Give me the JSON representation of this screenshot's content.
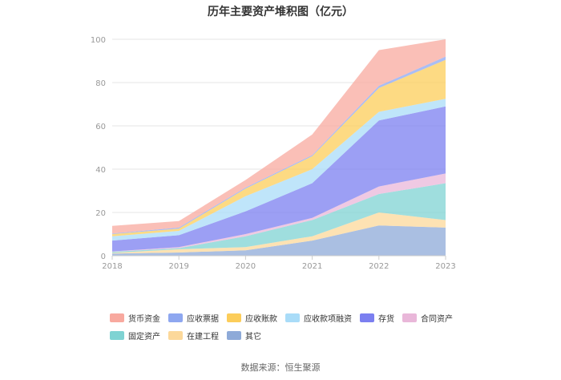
{
  "chart_data": {
    "type": "area",
    "stacked": true,
    "title": "历年主要资产堆积图（亿元）",
    "categories": [
      "2018",
      "2019",
      "2020",
      "2021",
      "2022",
      "2023"
    ],
    "y_ticks": [
      "0",
      "20",
      "40",
      "60",
      "80",
      "100"
    ],
    "ylim": [
      0,
      100
    ],
    "grid": true,
    "legend_position": "bottom",
    "series": [
      {
        "name": "其它",
        "color": "#8eaad8",
        "values": [
          1.0,
          1.5,
          2.5,
          7.0,
          14.0,
          13.0
        ]
      },
      {
        "name": "在建工程",
        "color": "#fcd89a",
        "values": [
          0.3,
          1.5,
          1.5,
          2.0,
          6.0,
          3.5
        ]
      },
      {
        "name": "固定资产",
        "color": "#7fd3d3",
        "values": [
          0.5,
          0.5,
          5.0,
          7.5,
          8.5,
          17.0
        ]
      },
      {
        "name": "合同资产",
        "color": "#e9b7d9",
        "values": [
          0.2,
          0.5,
          1.0,
          1.0,
          3.5,
          4.5
        ]
      },
      {
        "name": "存货",
        "color": "#7b7ff0",
        "values": [
          5.0,
          5.5,
          10.5,
          16.0,
          30.5,
          31.0
        ]
      },
      {
        "name": "应收款项融资",
        "color": "#a9dcf8",
        "values": [
          2.0,
          2.0,
          7.0,
          6.5,
          4.0,
          3.5
        ]
      },
      {
        "name": "应收账款",
        "color": "#fccd5a",
        "values": [
          1.0,
          1.0,
          3.5,
          6.0,
          11.0,
          18.0
        ]
      },
      {
        "name": "应收票据",
        "color": "#8ea7f0",
        "values": [
          0.3,
          0.5,
          0.5,
          0.5,
          1.0,
          1.5
        ]
      },
      {
        "name": "货币资金",
        "color": "#f8a99f",
        "values": [
          3.5,
          3.0,
          3.5,
          9.5,
          16.5,
          8.0
        ]
      }
    ]
  },
  "legend": {
    "items": [
      {
        "label": "货币资金",
        "color": "#f8a99f"
      },
      {
        "label": "应收票据",
        "color": "#8ea7f0"
      },
      {
        "label": "应收账款",
        "color": "#fccd5a"
      },
      {
        "label": "应收款项融资",
        "color": "#a9dcf8"
      },
      {
        "label": "存货",
        "color": "#7b7ff0"
      },
      {
        "label": "合同资产",
        "color": "#e9b7d9"
      },
      {
        "label": "固定资产",
        "color": "#7fd3d3"
      },
      {
        "label": "在建工程",
        "color": "#fcd89a"
      },
      {
        "label": "其它",
        "color": "#8eaad8"
      }
    ]
  },
  "footer": {
    "source": "数据来源：恒生聚源"
  }
}
